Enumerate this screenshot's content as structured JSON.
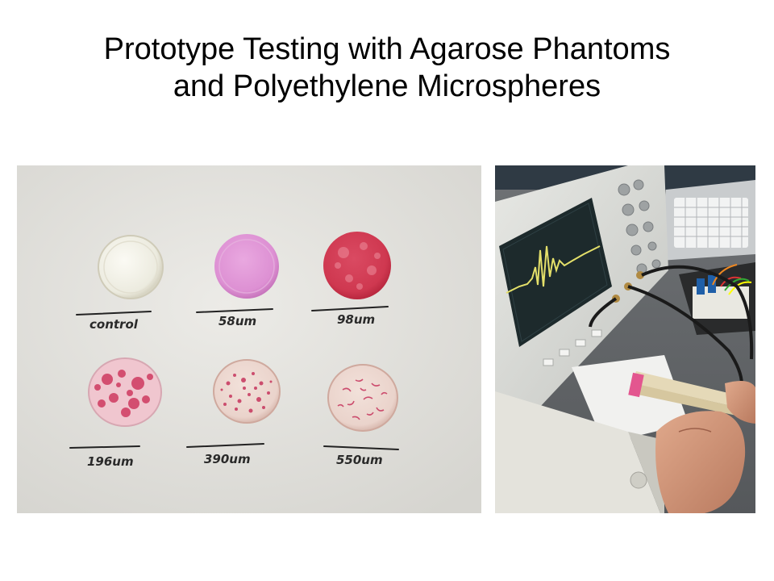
{
  "slide": {
    "title_line1": "Prototype Testing with Agarose Phantoms",
    "title_line2": "and Polyethylene Microspheres"
  },
  "phantom_photo": {
    "labels": [
      "control",
      "58um",
      "98um",
      "196um",
      "390um",
      "550um"
    ],
    "colors": {
      "paper": "#e4e3df",
      "control": "#f1efe6",
      "pink_light": "#dc8fd2",
      "red_dense": "#d0364e",
      "speckle": "#c42a55"
    }
  },
  "bench_photo": {
    "objects": [
      "oscilloscope",
      "keyboard",
      "breadboard",
      "transducer-holder",
      "hand"
    ],
    "colors": {
      "scope_body": "#d9dad6",
      "scope_screen": "#1d2a2c",
      "trace": "#e4e06a"
    }
  }
}
